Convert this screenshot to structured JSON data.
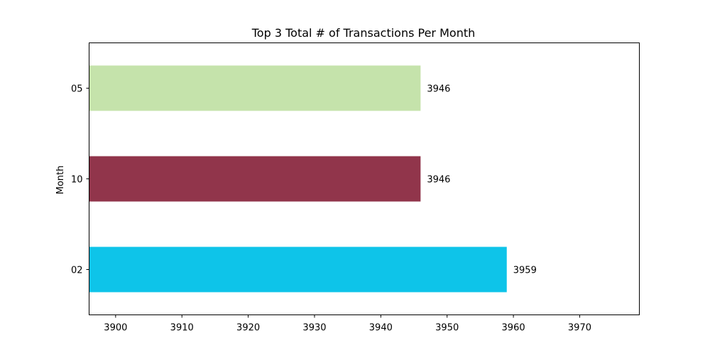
{
  "chart_data": {
    "type": "bar",
    "orientation": "horizontal",
    "title": "Top 3 Total # of Transactions Per Month",
    "xlabel": "",
    "ylabel": "Month",
    "categories": [
      "02",
      "10",
      "05"
    ],
    "values": [
      3959,
      3946,
      3946
    ],
    "bar_colors": [
      "#0ec4e9",
      "#91354b",
      "#c5e3ab"
    ],
    "xlim": [
      3896,
      3979
    ],
    "xticks": [
      3900,
      3910,
      3920,
      3930,
      3940,
      3950,
      3960,
      3970
    ],
    "grid": false,
    "legend": "none"
  }
}
